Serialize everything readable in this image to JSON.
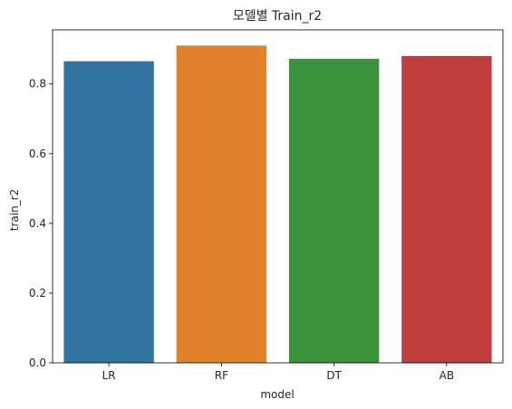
{
  "chart_data": {
    "type": "bar",
    "title": "모델별 Train_r2",
    "xlabel": "model",
    "ylabel": "train_r2",
    "categories": [
      "LR",
      "RF",
      "DT",
      "AB"
    ],
    "values": [
      0.865,
      0.91,
      0.872,
      0.88
    ],
    "colors": [
      "#3274a1",
      "#e1812c",
      "#3a923a",
      "#c03d3e"
    ],
    "ylim": [
      0,
      0.955
    ],
    "yticks": [
      0.0,
      0.2,
      0.4,
      0.6,
      0.8
    ],
    "ytick_labels": [
      "0.0",
      "0.2",
      "0.4",
      "0.6",
      "0.8"
    ],
    "grid": false,
    "legend": "none"
  }
}
